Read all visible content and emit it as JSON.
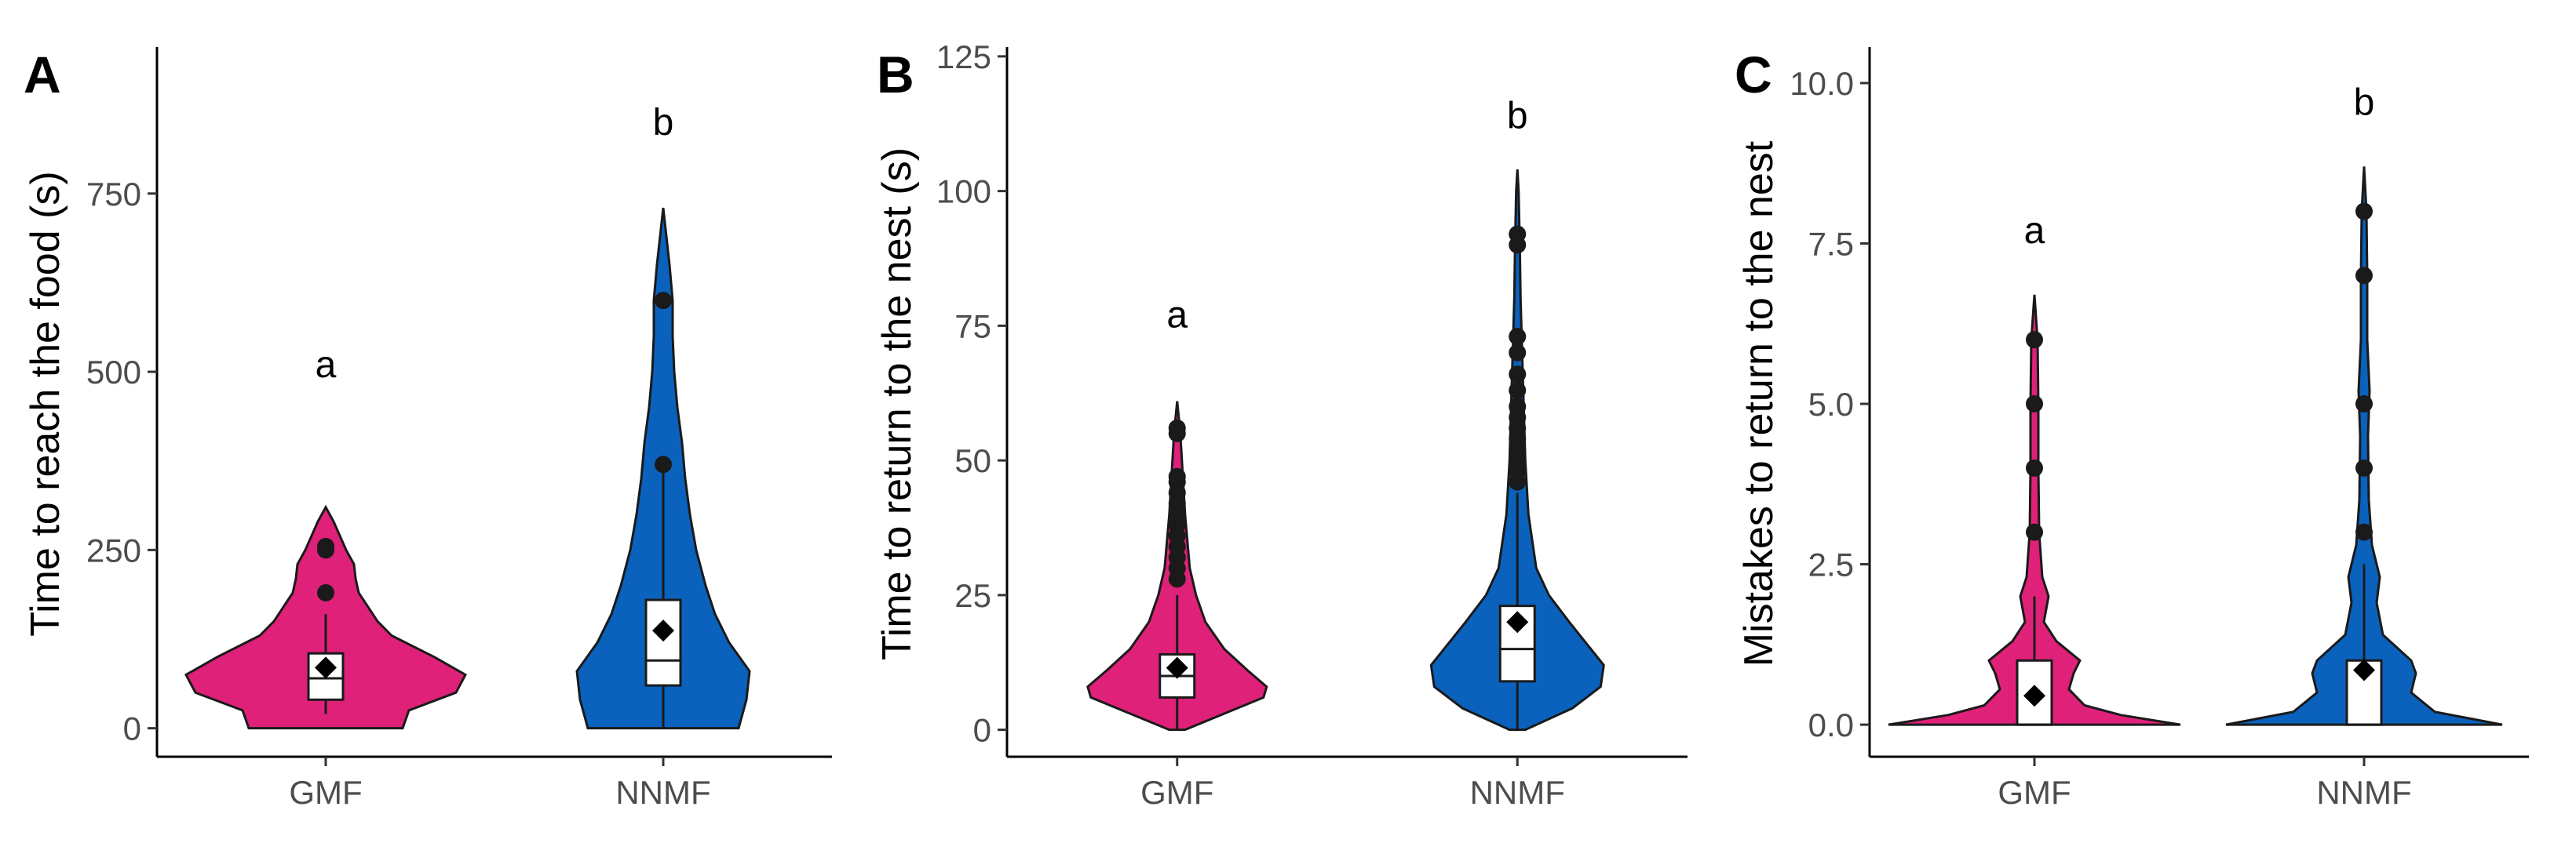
{
  "colors": {
    "GMF": "#e0217a",
    "NNMF": "#0a62bd",
    "outline": "#1a1a1a",
    "point": "#1a1a1a",
    "box": "#ffffff"
  },
  "chart_data": [
    {
      "panel": "A",
      "type": "violin",
      "ylabel": "Time to reach the food (s)",
      "xlabel": "",
      "categories": [
        "GMF",
        "NNMF"
      ],
      "ylim": [
        -40,
        950
      ],
      "yticks": [
        0,
        250,
        500,
        750
      ],
      "yticklabels": [
        "0",
        "250",
        "500",
        "750"
      ],
      "grid": false,
      "groups": [
        {
          "name": "GMF",
          "letter": "a",
          "letter_y": 510,
          "violin_range": [
            0,
            310
          ],
          "violin_profile": [
            [
              0,
              0.49
            ],
            [
              25,
              0.53
            ],
            [
              50,
              0.83
            ],
            [
              75,
              0.89
            ],
            [
              100,
              0.69
            ],
            [
              130,
              0.42
            ],
            [
              150,
              0.33
            ],
            [
              170,
              0.27
            ],
            [
              190,
              0.21
            ],
            [
              210,
              0.19
            ],
            [
              230,
              0.18
            ],
            [
              250,
              0.13
            ],
            [
              270,
              0.09
            ],
            [
              290,
              0.05
            ],
            [
              310,
              0
            ]
          ],
          "box": {
            "q1": 40,
            "median": 70,
            "q3": 105,
            "whisker_low": 20,
            "whisker_high": 160
          },
          "mean": 85,
          "outliers": [
            190,
            250,
            255
          ]
        },
        {
          "name": "NNMF",
          "letter": "b",
          "letter_y": 850,
          "violin_range": [
            0,
            730
          ],
          "violin_profile": [
            [
              0,
              0.48
            ],
            [
              40,
              0.53
            ],
            [
              80,
              0.55
            ],
            [
              120,
              0.42
            ],
            [
              160,
              0.33
            ],
            [
              200,
              0.27
            ],
            [
              250,
              0.21
            ],
            [
              300,
              0.17
            ],
            [
              350,
              0.14
            ],
            [
              400,
              0.12
            ],
            [
              450,
              0.09
            ],
            [
              500,
              0.07
            ],
            [
              550,
              0.06
            ],
            [
              600,
              0.06
            ],
            [
              650,
              0.04
            ],
            [
              700,
              0.015
            ],
            [
              730,
              0
            ]
          ],
          "box": {
            "q1": 60,
            "median": 95,
            "q3": 180,
            "whisker_low": 0,
            "whisker_high": 360
          },
          "mean": 137,
          "outliers": [
            370,
            600
          ]
        }
      ]
    },
    {
      "panel": "B",
      "type": "violin",
      "ylabel": "Time to return to the nest (s)",
      "xlabel": "",
      "categories": [
        "GMF",
        "NNMF"
      ],
      "ylim": [
        -5,
        126
      ],
      "yticks": [
        0,
        25,
        50,
        75,
        100,
        125
      ],
      "yticklabels": [
        "0",
        "25",
        "50",
        "75",
        "100",
        "125"
      ],
      "grid": false,
      "groups": [
        {
          "name": "GMF",
          "letter": "a",
          "letter_y": 77,
          "violin_range": [
            0,
            61
          ],
          "violin_profile": [
            [
              0,
              0.05
            ],
            [
              3,
              0.3
            ],
            [
              6,
              0.55
            ],
            [
              8,
              0.57
            ],
            [
              11,
              0.45
            ],
            [
              15,
              0.3
            ],
            [
              20,
              0.18
            ],
            [
              25,
              0.12
            ],
            [
              30,
              0.08
            ],
            [
              40,
              0.05
            ],
            [
              50,
              0.03
            ],
            [
              55,
              0.02
            ],
            [
              61,
              0
            ]
          ],
          "box": {
            "q1": 6,
            "median": 10,
            "q3": 14,
            "whisker_low": 0,
            "whisker_high": 25
          },
          "mean": 11.5,
          "outliers": [
            28,
            30,
            32,
            34,
            36,
            38,
            40,
            42,
            44,
            46,
            47,
            55,
            56
          ]
        },
        {
          "name": "NNMF",
          "letter": "b",
          "letter_y": 114,
          "violin_range": [
            0,
            104
          ],
          "violin_profile": [
            [
              0,
              0.05
            ],
            [
              4,
              0.35
            ],
            [
              8,
              0.53
            ],
            [
              12,
              0.55
            ],
            [
              16,
              0.44
            ],
            [
              20,
              0.33
            ],
            [
              25,
              0.2
            ],
            [
              30,
              0.12
            ],
            [
              40,
              0.07
            ],
            [
              50,
              0.05
            ],
            [
              60,
              0.04
            ],
            [
              70,
              0.03
            ],
            [
              80,
              0.02
            ],
            [
              90,
              0.015
            ],
            [
              100,
              0.008
            ],
            [
              104,
              0
            ]
          ],
          "box": {
            "q1": 9,
            "median": 15,
            "q3": 23,
            "whisker_low": 0,
            "whisker_high": 44
          },
          "mean": 20,
          "outliers": [
            46,
            48,
            50,
            52,
            54,
            56,
            58,
            60,
            63,
            66,
            70,
            73,
            90,
            92
          ]
        }
      ]
    },
    {
      "panel": "C",
      "type": "violin",
      "ylabel": "Mistakes to return to the nest",
      "xlabel": "",
      "categories": [
        "GMF",
        "NNMF"
      ],
      "ylim": [
        -0.5,
        10.5
      ],
      "yticks": [
        0.0,
        2.5,
        5.0,
        7.5,
        10.0
      ],
      "yticklabels": [
        "0.0",
        "2.5",
        "5.0",
        "7.5",
        "10.0"
      ],
      "grid": false,
      "groups": [
        {
          "name": "GMF",
          "letter": "a",
          "letter_y": 7.7,
          "violin_range": [
            0,
            6.7
          ],
          "violin_profile": [
            [
              0,
              0.93
            ],
            [
              0.15,
              0.55
            ],
            [
              0.3,
              0.32
            ],
            [
              0.55,
              0.22
            ],
            [
              0.8,
              0.25
            ],
            [
              1.0,
              0.29
            ],
            [
              1.3,
              0.14
            ],
            [
              1.6,
              0.06
            ],
            [
              2.0,
              0.09
            ],
            [
              2.3,
              0.05
            ],
            [
              3.0,
              0.03
            ],
            [
              4.0,
              0.025
            ],
            [
              5.0,
              0.025
            ],
            [
              6.0,
              0.02
            ],
            [
              6.7,
              0
            ]
          ],
          "box": {
            "q1": 0,
            "median": 0,
            "q3": 1,
            "whisker_low": 0,
            "whisker_high": 2
          },
          "mean": 0.45,
          "outliers": [
            3,
            4,
            5,
            6
          ]
        },
        {
          "name": "NNMF",
          "letter": "b",
          "letter_y": 9.7,
          "violin_range": [
            0,
            8.7
          ],
          "violin_profile": [
            [
              0,
              0.88
            ],
            [
              0.2,
              0.45
            ],
            [
              0.5,
              0.3
            ],
            [
              0.8,
              0.33
            ],
            [
              1.0,
              0.3
            ],
            [
              1.4,
              0.12
            ],
            [
              1.9,
              0.08
            ],
            [
              2.3,
              0.1
            ],
            [
              2.8,
              0.05
            ],
            [
              3.5,
              0.03
            ],
            [
              4.5,
              0.025
            ],
            [
              5.2,
              0.035
            ],
            [
              6.0,
              0.02
            ],
            [
              7.0,
              0.02
            ],
            [
              8.0,
              0.015
            ],
            [
              8.7,
              0
            ]
          ],
          "box": {
            "q1": 0,
            "median": 0,
            "q3": 1,
            "whisker_low": 0,
            "whisker_high": 2.5
          },
          "mean": 0.85,
          "outliers": [
            3,
            4,
            5,
            7,
            8
          ]
        }
      ]
    }
  ]
}
